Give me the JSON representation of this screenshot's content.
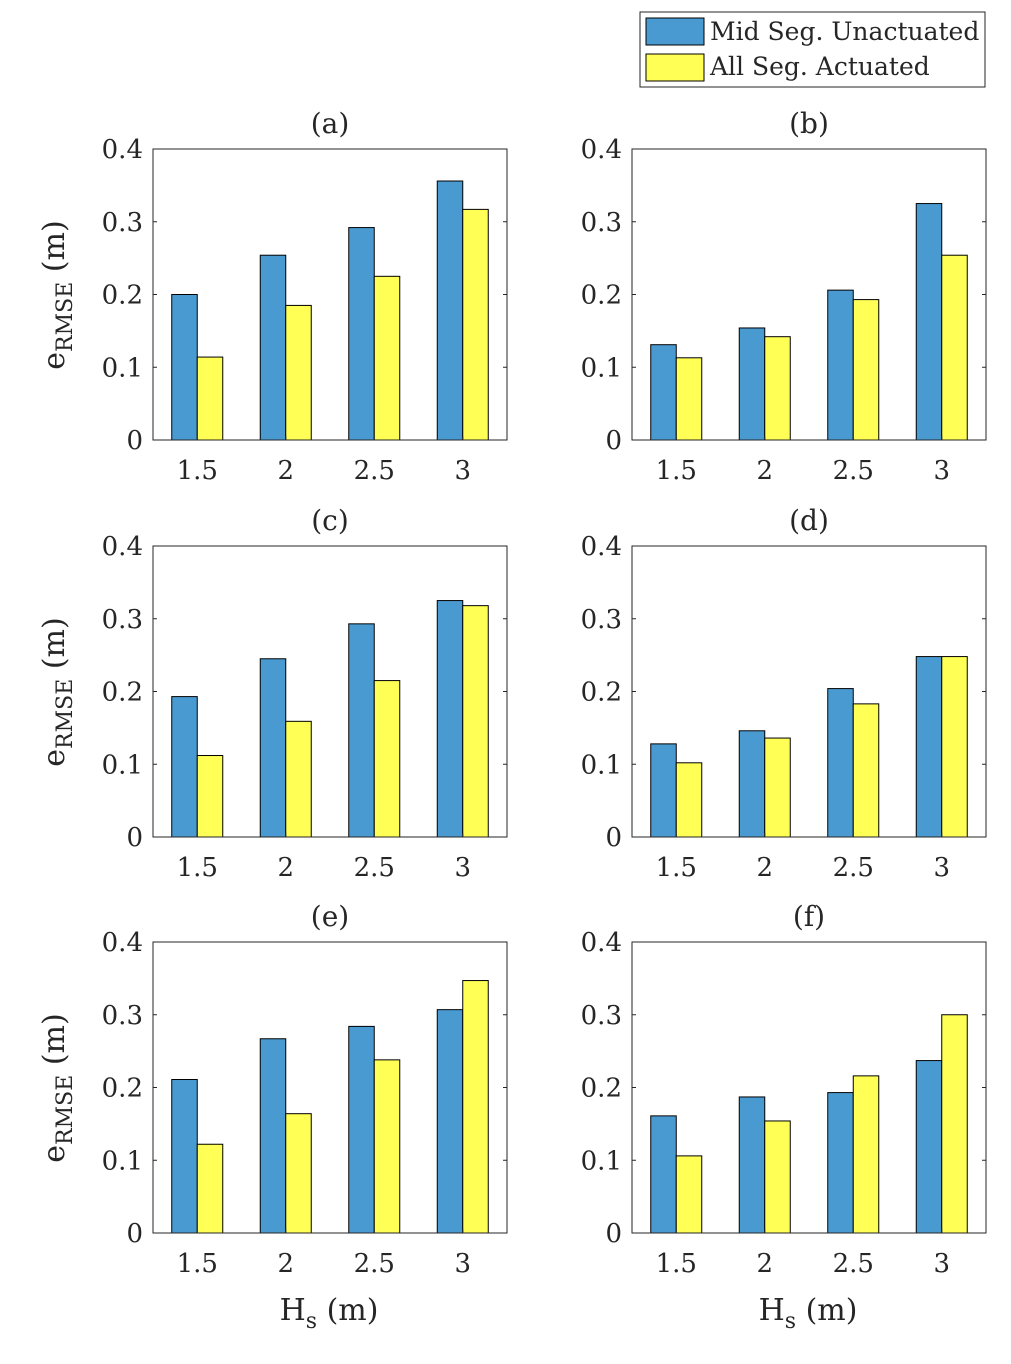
{
  "legend": {
    "entries": [
      {
        "label": "Mid Seg. Unactuated",
        "color": "#4a9ad2"
      },
      {
        "label": "All Seg. Actuated",
        "color": "#ffff55"
      }
    ]
  },
  "ylabel": {
    "main": "e",
    "sub": "RMSE",
    "unit": " (m)"
  },
  "xlabel": {
    "main": "H",
    "sub": "s",
    "unit": " (m)"
  },
  "chart_data": [
    {
      "type": "bar",
      "title": "(a)",
      "categories": [
        "1.5",
        "2",
        "2.5",
        "3"
      ],
      "ylim": [
        0,
        0.4
      ],
      "yticks": [
        "0",
        "0.1",
        "0.2",
        "0.3",
        "0.4"
      ],
      "series": [
        {
          "name": "Mid Seg. Unactuated",
          "values": [
            0.2,
            0.254,
            0.292,
            0.356
          ]
        },
        {
          "name": "All Seg. Actuated",
          "values": [
            0.114,
            0.185,
            0.225,
            0.317
          ]
        }
      ]
    },
    {
      "type": "bar",
      "title": "(b)",
      "categories": [
        "1.5",
        "2",
        "2.5",
        "3"
      ],
      "ylim": [
        0,
        0.4
      ],
      "yticks": [
        "0",
        "0.1",
        "0.2",
        "0.3",
        "0.4"
      ],
      "series": [
        {
          "name": "Mid Seg. Unactuated",
          "values": [
            0.131,
            0.154,
            0.206,
            0.325
          ]
        },
        {
          "name": "All Seg. Actuated",
          "values": [
            0.113,
            0.142,
            0.193,
            0.254
          ]
        }
      ]
    },
    {
      "type": "bar",
      "title": "(c)",
      "categories": [
        "1.5",
        "2",
        "2.5",
        "3"
      ],
      "ylim": [
        0,
        0.4
      ],
      "yticks": [
        "0",
        "0.1",
        "0.2",
        "0.3",
        "0.4"
      ],
      "series": [
        {
          "name": "Mid Seg. Unactuated",
          "values": [
            0.193,
            0.245,
            0.293,
            0.325
          ]
        },
        {
          "name": "All Seg. Actuated",
          "values": [
            0.112,
            0.159,
            0.215,
            0.318
          ]
        }
      ]
    },
    {
      "type": "bar",
      "title": "(d)",
      "categories": [
        "1.5",
        "2",
        "2.5",
        "3"
      ],
      "ylim": [
        0,
        0.4
      ],
      "yticks": [
        "0",
        "0.1",
        "0.2",
        "0.3",
        "0.4"
      ],
      "series": [
        {
          "name": "Mid Seg. Unactuated",
          "values": [
            0.128,
            0.146,
            0.204,
            0.248
          ]
        },
        {
          "name": "All Seg. Actuated",
          "values": [
            0.102,
            0.136,
            0.183,
            0.248
          ]
        }
      ]
    },
    {
      "type": "bar",
      "title": "(e)",
      "categories": [
        "1.5",
        "2",
        "2.5",
        "3"
      ],
      "ylim": [
        0,
        0.4
      ],
      "yticks": [
        "0",
        "0.1",
        "0.2",
        "0.3",
        "0.4"
      ],
      "series": [
        {
          "name": "Mid Seg. Unactuated",
          "values": [
            0.211,
            0.267,
            0.284,
            0.307
          ]
        },
        {
          "name": "All Seg. Actuated",
          "values": [
            0.122,
            0.164,
            0.238,
            0.347
          ]
        }
      ]
    },
    {
      "type": "bar",
      "title": "(f)",
      "categories": [
        "1.5",
        "2",
        "2.5",
        "3"
      ],
      "ylim": [
        0,
        0.4
      ],
      "yticks": [
        "0",
        "0.1",
        "0.2",
        "0.3",
        "0.4"
      ],
      "series": [
        {
          "name": "Mid Seg. Unactuated",
          "values": [
            0.161,
            0.187,
            0.193,
            0.237
          ]
        },
        {
          "name": "All Seg. Actuated",
          "values": [
            0.106,
            0.154,
            0.216,
            0.3
          ]
        }
      ]
    }
  ]
}
